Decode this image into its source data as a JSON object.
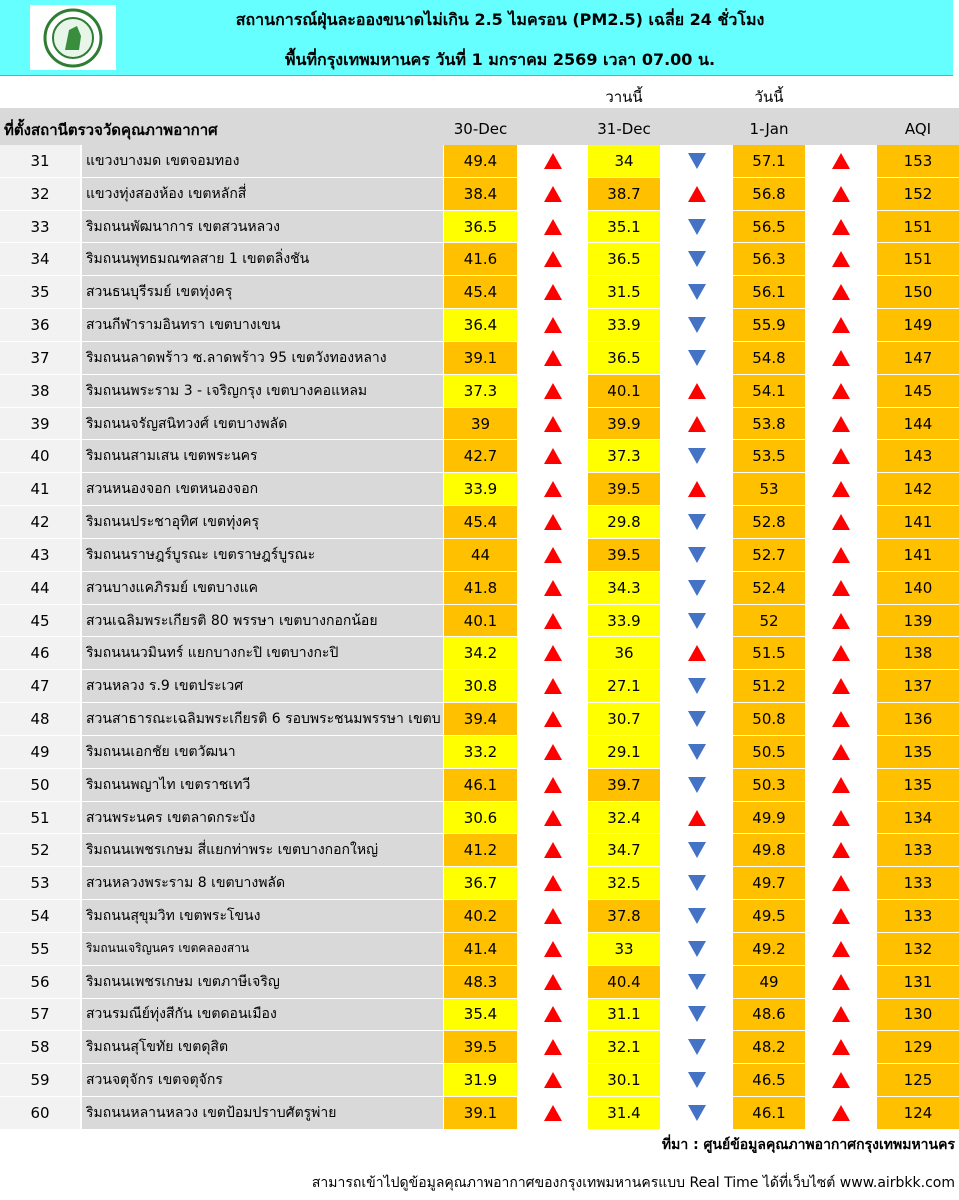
{
  "header": {
    "title": "สถานการณ์ฝุ่นละอองขนาดไม่เกิน 2.5 ไมครอน (PM2.5) เฉลี่ย 24 ชั่วโมง",
    "subtitle": "พื้นที่กรุงเทพมหานคร วันที่ 1 มกราคม 2569 เวลา 07.00 น."
  },
  "table": {
    "group_labels": {
      "yesterday": "วานนี้",
      "today": "วันนี้"
    },
    "columns": {
      "station": "ที่ตั้งสถานีตรวจวัดคุณภาพอากาศ",
      "d1": "30-Dec",
      "d2": "31-Dec",
      "d3": "1-Jan",
      "aqi": "AQI"
    },
    "fill_rule": {
      "yellow_max": 37.5,
      "yellow": "#ffff00",
      "orange": "#ffc000"
    },
    "trend_colors": {
      "up": "#ff0000",
      "down": "#4472c4"
    },
    "rows": [
      {
        "no": 31,
        "name": "แขวงบางมด เขตจอมทอง",
        "d1": 49.4,
        "t1": "up",
        "d2": 34,
        "t2": "down",
        "d3": 57.1,
        "t3": "up",
        "aqi": 153
      },
      {
        "no": 32,
        "name": "แขวงทุ่งสองห้อง เขตหลักสี่",
        "d1": 38.4,
        "t1": "up",
        "d2": 38.7,
        "t2": "up",
        "d3": 56.8,
        "t3": "up",
        "aqi": 152
      },
      {
        "no": 33,
        "name": "ริมถนนพัฒนาการ เขตสวนหลวง",
        "d1": 36.5,
        "t1": "up",
        "d2": 35.1,
        "t2": "down",
        "d3": 56.5,
        "t3": "up",
        "aqi": 151
      },
      {
        "no": 34,
        "name": "ริมถนนพุทธมณฑลสาย 1 เขตตลิ่งชัน",
        "d1": 41.6,
        "t1": "up",
        "d2": 36.5,
        "t2": "down",
        "d3": 56.3,
        "t3": "up",
        "aqi": 151
      },
      {
        "no": 35,
        "name": "สวนธนบุรีรมย์ เขตทุ่งครุ",
        "d1": 45.4,
        "t1": "up",
        "d2": 31.5,
        "t2": "down",
        "d3": 56.1,
        "t3": "up",
        "aqi": 150
      },
      {
        "no": 36,
        "name": "สวนกีฬารามอินทรา เขตบางเขน",
        "d1": 36.4,
        "t1": "up",
        "d2": 33.9,
        "t2": "down",
        "d3": 55.9,
        "t3": "up",
        "aqi": 149
      },
      {
        "no": 37,
        "name": "ริมถนนลาดพร้าว ซ.ลาดพร้าว 95 เขตวังทองหลาง",
        "d1": 39.1,
        "t1": "up",
        "d2": 36.5,
        "t2": "down",
        "d3": 54.8,
        "t3": "up",
        "aqi": 147
      },
      {
        "no": 38,
        "name": "ริมถนนพระราม 3 - เจริญกรุง เขตบางคอแหลม",
        "d1": 37.3,
        "t1": "up",
        "d2": 40.1,
        "t2": "up",
        "d3": 54.1,
        "t3": "up",
        "aqi": 145
      },
      {
        "no": 39,
        "name": "ริมถนนจรัญสนิทวงศ์ เขตบางพลัด",
        "d1": 39,
        "t1": "up",
        "d2": 39.9,
        "t2": "up",
        "d3": 53.8,
        "t3": "up",
        "aqi": 144
      },
      {
        "no": 40,
        "name": "ริมถนนสามเสน เขตพระนคร",
        "d1": 42.7,
        "t1": "up",
        "d2": 37.3,
        "t2": "down",
        "d3": 53.5,
        "t3": "up",
        "aqi": 143
      },
      {
        "no": 41,
        "name": "สวนหนองจอก เขตหนองจอก",
        "d1": 33.9,
        "t1": "up",
        "d2": 39.5,
        "t2": "up",
        "d3": 53,
        "t3": "up",
        "aqi": 142
      },
      {
        "no": 42,
        "name": "ริมถนนประชาอุทิศ เขตทุ่งครุ",
        "d1": 45.4,
        "t1": "up",
        "d2": 29.8,
        "t2": "down",
        "d3": 52.8,
        "t3": "up",
        "aqi": 141
      },
      {
        "no": 43,
        "name": "ริมถนนราษฎร์บูรณะ เขตราษฎร์บูรณะ",
        "d1": 44,
        "t1": "up",
        "d2": 39.5,
        "t2": "down",
        "d3": 52.7,
        "t3": "up",
        "aqi": 141
      },
      {
        "no": 44,
        "name": "สวนบางแคภิรมย์ เขตบางแค",
        "d1": 41.8,
        "t1": "up",
        "d2": 34.3,
        "t2": "down",
        "d3": 52.4,
        "t3": "up",
        "aqi": 140
      },
      {
        "no": 45,
        "name": "สวนเฉลิมพระเกียรติ 80 พรรษา  เขตบางกอกน้อย",
        "d1": 40.1,
        "t1": "up",
        "d2": 33.9,
        "t2": "down",
        "d3": 52,
        "t3": "up",
        "aqi": 139
      },
      {
        "no": 46,
        "name": "ริมถนนนวมินทร์ แยกบางกะปิ เขตบางกะปิ",
        "d1": 34.2,
        "t1": "up",
        "d2": 36,
        "t2": "up",
        "d3": 51.5,
        "t3": "up",
        "aqi": 138
      },
      {
        "no": 47,
        "name": "สวนหลวง ร.9 เขตประเวศ",
        "d1": 30.8,
        "t1": "up",
        "d2": 27.1,
        "t2": "down",
        "d3": 51.2,
        "t3": "up",
        "aqi": 137
      },
      {
        "no": 48,
        "name": "สวนสาธารณะเฉลิมพระเกียรติ 6 รอบพระชนมพรรษา เขตบ",
        "d1": 39.4,
        "t1": "up",
        "d2": 30.7,
        "t2": "down",
        "d3": 50.8,
        "t3": "up",
        "aqi": 136
      },
      {
        "no": 49,
        "name": "ริมถนนเอกชัย เขตวัฒนา",
        "d1": 33.2,
        "t1": "up",
        "d2": 29.1,
        "t2": "down",
        "d3": 50.5,
        "t3": "up",
        "aqi": 135
      },
      {
        "no": 50,
        "name": "ริมถนนพญาไท เขตราชเทวี",
        "d1": 46.1,
        "t1": "up",
        "d2": 39.7,
        "t2": "down",
        "d3": 50.3,
        "t3": "up",
        "aqi": 135
      },
      {
        "no": 51,
        "name": "สวนพระนคร เขตลาดกระบัง",
        "d1": 30.6,
        "t1": "up",
        "d2": 32.4,
        "t2": "up",
        "d3": 49.9,
        "t3": "up",
        "aqi": 134
      },
      {
        "no": 52,
        "name": "ริมถนนเพชรเกษม สี่แยกท่าพระ เขตบางกอกใหญ่",
        "d1": 41.2,
        "t1": "up",
        "d2": 34.7,
        "t2": "down",
        "d3": 49.8,
        "t3": "up",
        "aqi": 133
      },
      {
        "no": 53,
        "name": "สวนหลวงพระราม 8 เขตบางพลัด",
        "d1": 36.7,
        "t1": "up",
        "d2": 32.5,
        "t2": "down",
        "d3": 49.7,
        "t3": "up",
        "aqi": 133
      },
      {
        "no": 54,
        "name": "ริมถนนสุขุมวิท เขตพระโขนง",
        "d1": 40.2,
        "t1": "up",
        "d2": 37.8,
        "t2": "down",
        "d3": 49.5,
        "t3": "up",
        "aqi": 133
      },
      {
        "no": 55,
        "name": "ริมถนนเจริญนคร เขตคลองสาน",
        "d1": 41.4,
        "t1": "up",
        "d2": 33,
        "t2": "down",
        "d3": 49.2,
        "t3": "up",
        "aqi": 132
      },
      {
        "no": 56,
        "name": "ริมถนนเพชรเกษม เขตภาษีเจริญ",
        "d1": 48.3,
        "t1": "up",
        "d2": 40.4,
        "t2": "down",
        "d3": 49,
        "t3": "up",
        "aqi": 131
      },
      {
        "no": 57,
        "name": "สวนรมณีย์ทุ่งสีกัน เขตดอนเมือง",
        "d1": 35.4,
        "t1": "up",
        "d2": 31.1,
        "t2": "down",
        "d3": 48.6,
        "t3": "up",
        "aqi": 130
      },
      {
        "no": 58,
        "name": "ริมถนนสุโขทัย เขตดุสิต",
        "d1": 39.5,
        "t1": "up",
        "d2": 32.1,
        "t2": "down",
        "d3": 48.2,
        "t3": "up",
        "aqi": 129
      },
      {
        "no": 59,
        "name": "สวนจตุจักร เขตจตุจักร",
        "d1": 31.9,
        "t1": "up",
        "d2": 30.1,
        "t2": "down",
        "d3": 46.5,
        "t3": "up",
        "aqi": 125
      },
      {
        "no": 60,
        "name": "ริมถนนหลานหลวง เขตป้อมปราบศัตรูพ่าย",
        "d1": 39.1,
        "t1": "up",
        "d2": 31.4,
        "t2": "down",
        "d3": 46.1,
        "t3": "up",
        "aqi": 124
      }
    ]
  },
  "footer": {
    "source": "ที่มา : ศูนย์ข้อมูลคุณภาพอากาศกรุงเทพมหานคร",
    "link_note": "สามารถเข้าไปดูข้อมูลคุณภาพอากาศของกรุงเทพมหานครแบบ Real Time ได้ที่เว็บไซต์ www.airbkk.com"
  }
}
